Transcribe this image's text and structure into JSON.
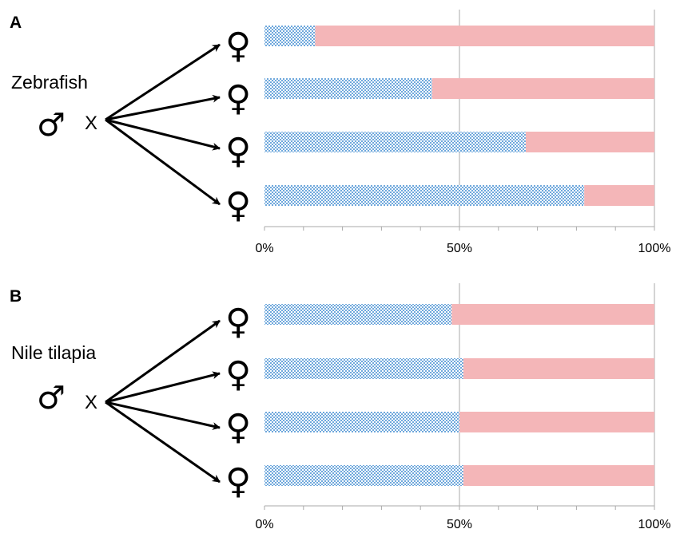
{
  "colors": {
    "blue_pattern": "#6fa8dc",
    "pink": "#f4b6b8",
    "gridline": "#aaaaaa",
    "arrow": "#000000"
  },
  "icons": {
    "male": "♂",
    "female": "♀",
    "arrow": "arrow-icon",
    "cross": "X"
  },
  "chart_data": [
    {
      "type": "bar",
      "orientation": "horizontal",
      "stacked": true,
      "panel": "A",
      "species": "Zebrafish",
      "cross_symbol": "X",
      "xlim": [
        0,
        100
      ],
      "xtick_labels": [
        "0%",
        "50%",
        "100%"
      ],
      "grid": "vertical at 50% and 100%",
      "series": [
        {
          "pattern": "blue-checkered",
          "values": [
            13,
            43,
            67,
            82
          ]
        },
        {
          "pattern": "pink-solid",
          "values": [
            87,
            57,
            33,
            18
          ]
        }
      ]
    },
    {
      "type": "bar",
      "orientation": "horizontal",
      "stacked": true,
      "panel": "B",
      "species": "Nile tilapia",
      "cross_symbol": "X",
      "xlim": [
        0,
        100
      ],
      "xtick_labels": [
        "0%",
        "50%",
        "100%"
      ],
      "grid": "vertical at 50% and 100%",
      "series": [
        {
          "pattern": "blue-checkered",
          "values": [
            48,
            51,
            50,
            51
          ]
        },
        {
          "pattern": "pink-solid",
          "values": [
            52,
            49,
            50,
            49
          ]
        }
      ]
    }
  ]
}
